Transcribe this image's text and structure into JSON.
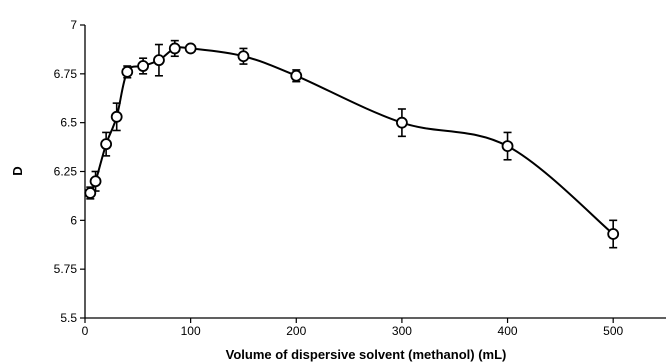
{
  "chart_data": {
    "type": "scatter",
    "title": "",
    "xlabel": "Volume of dispersive solvent (methanol) (mL)",
    "ylabel": "D",
    "xlim": [
      0,
      550
    ],
    "ylim": [
      5.5,
      7
    ],
    "x_ticks": [
      0,
      100,
      200,
      300,
      400,
      500
    ],
    "y_ticks": [
      5.5,
      5.75,
      6,
      6.25,
      6.5,
      6.75,
      7
    ],
    "y_tick_labels": [
      "5.5",
      "5.75",
      "6",
      "6.25",
      "6.5",
      "6.75",
      "7"
    ],
    "grid": false,
    "legend": "none",
    "series": [
      {
        "x": [
          5,
          10,
          20,
          30,
          40,
          55,
          70,
          85,
          100,
          150,
          200,
          300,
          400,
          500
        ],
        "y": [
          6.14,
          6.2,
          6.39,
          6.53,
          6.76,
          6.79,
          6.82,
          6.88,
          6.88,
          6.84,
          6.74,
          6.5,
          6.38,
          5.93
        ],
        "error": [
          0.03,
          0.05,
          0.06,
          0.07,
          0.03,
          0.04,
          0.08,
          0.04,
          0.01,
          0.04,
          0.03,
          0.07,
          0.07,
          0.07
        ],
        "marker": "open-circle",
        "line": "smooth",
        "color": "#000000"
      }
    ]
  }
}
